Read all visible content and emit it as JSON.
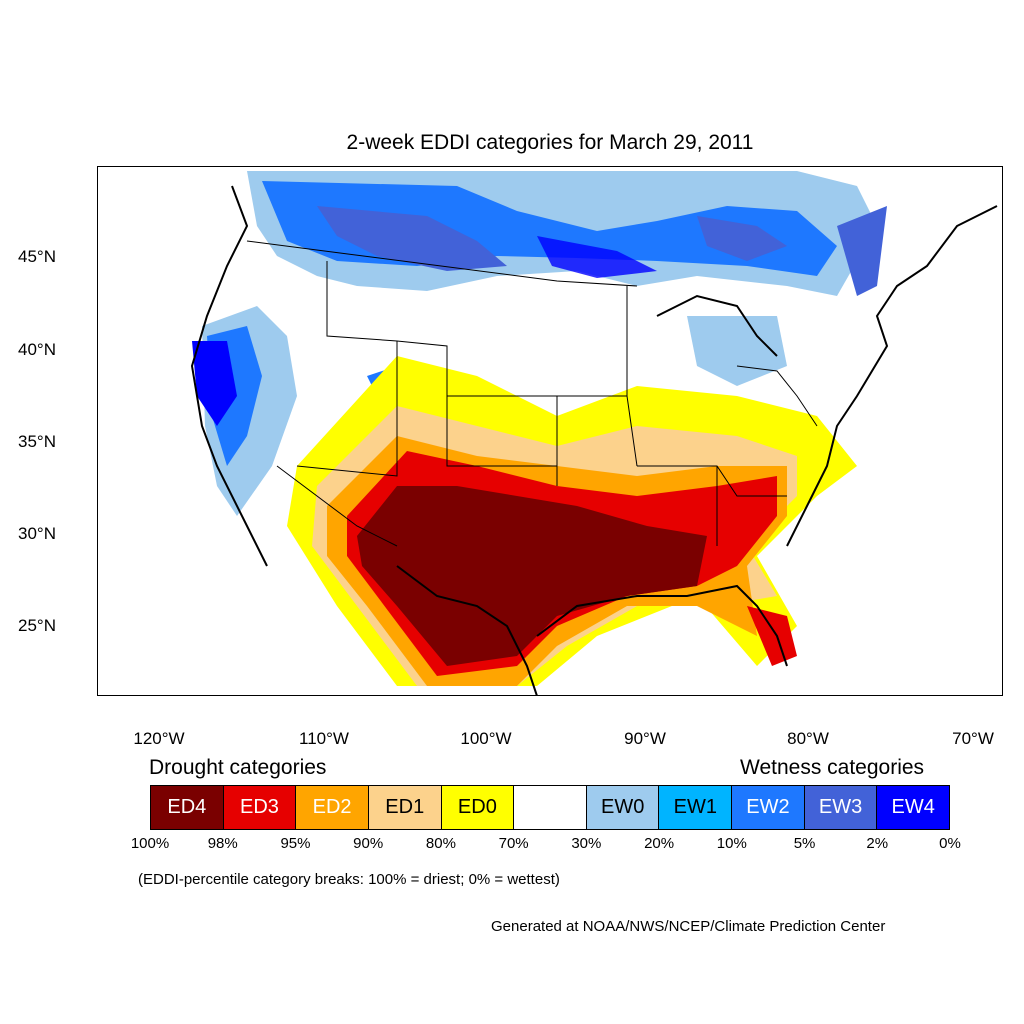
{
  "title": "2-week EDDI categories for March 29, 2011",
  "lat_labels": [
    "45°N",
    "40°N",
    "35°N",
    "30°N",
    "25°N"
  ],
  "lon_labels": [
    "120°W",
    "110°W",
    "100°W",
    "90°W",
    "80°W",
    "70°W"
  ],
  "drought_heading": "Drought categories",
  "wetness_heading": "Wetness categories",
  "legend": [
    {
      "label": "ED4",
      "color": "#7a0000",
      "text_color": "#ffffff"
    },
    {
      "label": "ED3",
      "color": "#e60000",
      "text_color": "#ffffff"
    },
    {
      "label": "ED2",
      "color": "#ffa500",
      "text_color": "#ffffff"
    },
    {
      "label": "ED1",
      "color": "#fcd28c",
      "text_color": "#000000"
    },
    {
      "label": "ED0",
      "color": "#ffff00",
      "text_color": "#000000"
    },
    {
      "label": "",
      "color": "#ffffff",
      "text_color": "#000000"
    },
    {
      "label": "EW0",
      "color": "#9ecbee",
      "text_color": "#000000"
    },
    {
      "label": "EW1",
      "color": "#00b4ff",
      "text_color": "#000000"
    },
    {
      "label": "EW2",
      "color": "#1e78ff",
      "text_color": "#ffffff"
    },
    {
      "label": "EW3",
      "color": "#4262d8",
      "text_color": "#ffffff"
    },
    {
      "label": "EW4",
      "color": "#0000ff",
      "text_color": "#ffffff"
    }
  ],
  "percent_breaks": [
    "100%",
    "98%",
    "95%",
    "90%",
    "80%",
    "70%",
    "30%",
    "20%",
    "10%",
    "5%",
    "2%",
    "0%"
  ],
  "breaks_note": "(EDDI-percentile category breaks: 100% = driest; 0% = wettest)",
  "credit": "Generated at NOAA/NWS/NCEP/Climate Prediction Center"
}
